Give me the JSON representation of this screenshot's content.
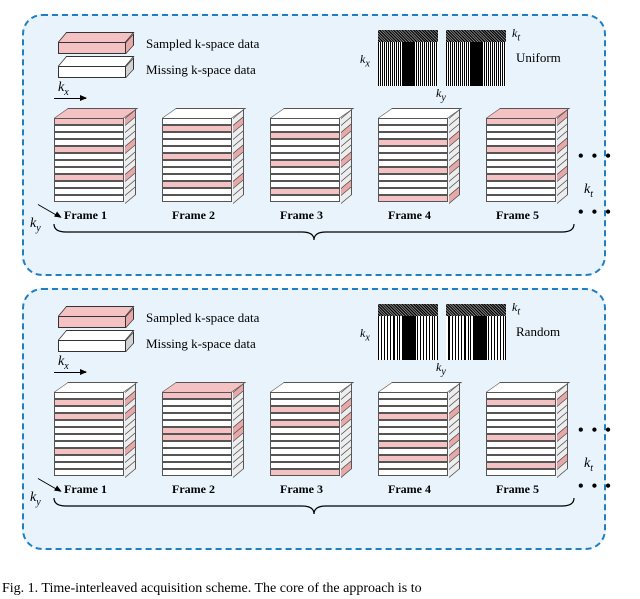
{
  "caption": "Fig. 1. Time-interleaved acquisition scheme. The core of the approach is to",
  "colors": {
    "dashed_border": "#1e7fc4",
    "panel_bg": "#e8f3fb",
    "filled_slab": "#f4c2c2",
    "filled_slab_side": "#e8a8a8",
    "empty_slab": "#ffffff",
    "gray_slab": "#d2d2d2",
    "line": "#333333"
  },
  "layout": {
    "nlayers": 12,
    "stack_width": 70,
    "stack_layer_h": 7,
    "frame_gap": 108
  },
  "panels": [
    {
      "key": "uniform",
      "legend": {
        "sampled": "Sampled k-space data",
        "missing": "Missing k-space data"
      },
      "mask": {
        "name": "Uniform",
        "type": "uniform"
      },
      "axis": {
        "kx": "k",
        "kx_sub": "x",
        "ky": "k",
        "ky_sub": "y",
        "kt": "k",
        "kt_sub": "t"
      },
      "frames": [
        {
          "label": "Frame 1",
          "filled": [
            0,
            4,
            8
          ]
        },
        {
          "label": "Frame 2",
          "filled": [
            1,
            5,
            9
          ]
        },
        {
          "label": "Frame 3",
          "filled": [
            2,
            6,
            10
          ]
        },
        {
          "label": "Frame 4",
          "filled": [
            3,
            7,
            11
          ]
        },
        {
          "label": "Frame 5",
          "filled": [
            0,
            4,
            8
          ]
        }
      ],
      "ellipsis": "• • •"
    },
    {
      "key": "random",
      "legend": {
        "sampled": "Sampled k-space data",
        "missing": "Missing k-space data"
      },
      "mask": {
        "name": "Random",
        "type": "random"
      },
      "axis": {
        "kx": "k",
        "kx_sub": "x",
        "ky": "k",
        "ky_sub": "y",
        "kt": "k",
        "kt_sub": "t"
      },
      "frames": [
        {
          "label": "Frame 1",
          "filled": [
            1,
            3,
            8
          ]
        },
        {
          "label": "Frame 2",
          "filled": [
            0,
            5,
            6
          ]
        },
        {
          "label": "Frame 3",
          "filled": [
            2,
            4,
            11
          ]
        },
        {
          "label": "Frame 4",
          "filled": [
            3,
            7,
            9
          ]
        },
        {
          "label": "Frame 5",
          "filled": [
            1,
            6,
            10
          ]
        }
      ],
      "ellipsis": "• • •"
    }
  ]
}
